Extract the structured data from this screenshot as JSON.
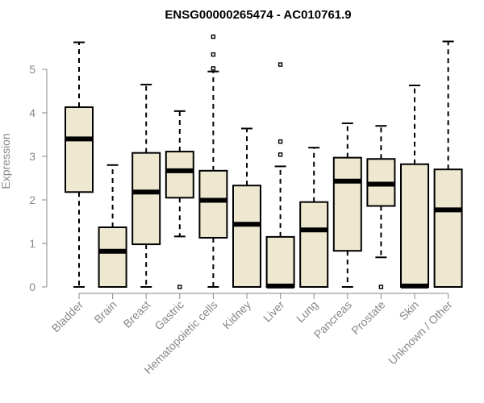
{
  "chart_data": {
    "type": "boxplot",
    "title": "ENSG00000265474 - AC010761.9",
    "xlabel": "",
    "ylabel": "Expression",
    "ylim": [
      0,
      5.9
    ],
    "yticks": [
      0,
      1,
      2,
      3,
      4,
      5
    ],
    "grid": false,
    "colors": {
      "box_fill": "#EEE8D0",
      "box_stroke": "#000000",
      "axis": "#888888",
      "tick_text": "#888888",
      "title": "#000000"
    },
    "categories": [
      "Bladder",
      "Brain",
      "Breast",
      "Gastric",
      "Hematopoietic cells",
      "Kidney",
      "Liver",
      "Lung",
      "Pancreas",
      "Prostate",
      "Skin",
      "Unknown / Other"
    ],
    "boxes": [
      {
        "category": "Bladder",
        "min": 0,
        "q1": 2.18,
        "median": 3.4,
        "q3": 4.13,
        "max": 5.62,
        "outliers": []
      },
      {
        "category": "Brain",
        "min": 0,
        "q1": 0,
        "median": 0.82,
        "q3": 1.37,
        "max": 2.8,
        "outliers": []
      },
      {
        "category": "Breast",
        "min": 0,
        "q1": 0.98,
        "median": 2.18,
        "q3": 3.08,
        "max": 4.65,
        "outliers": []
      },
      {
        "category": "Gastric",
        "min": 1.16,
        "q1": 2.05,
        "median": 2.67,
        "q3": 3.11,
        "max": 4.04,
        "outliers": [
          0
        ]
      },
      {
        "category": "Hematopoietic cells",
        "min": 0,
        "q1": 1.13,
        "median": 1.99,
        "q3": 2.67,
        "max": 4.95,
        "outliers": [
          5.02,
          5.34,
          5.75
        ]
      },
      {
        "category": "Kidney",
        "min": 0,
        "q1": 0,
        "median": 1.44,
        "q3": 2.33,
        "max": 3.64,
        "outliers": []
      },
      {
        "category": "Liver",
        "min": 0,
        "q1": 0,
        "median": 0.02,
        "q3": 1.15,
        "max": 2.77,
        "outliers": [
          3.04,
          3.34,
          5.11
        ]
      },
      {
        "category": "Lung",
        "min": 0,
        "q1": 0,
        "median": 1.31,
        "q3": 1.95,
        "max": 3.2,
        "outliers": []
      },
      {
        "category": "Pancreas",
        "min": 0,
        "q1": 0.83,
        "median": 2.43,
        "q3": 2.97,
        "max": 3.76,
        "outliers": []
      },
      {
        "category": "Prostate",
        "min": 0.68,
        "q1": 1.86,
        "median": 2.36,
        "q3": 2.94,
        "max": 3.7,
        "outliers": [
          0
        ]
      },
      {
        "category": "Skin",
        "min": 0,
        "q1": 0,
        "median": 0.02,
        "q3": 2.82,
        "max": 4.63,
        "outliers": []
      },
      {
        "category": "Unknown / Other",
        "min": 0,
        "q1": 0,
        "median": 1.77,
        "q3": 2.7,
        "max": 5.64,
        "outliers": []
      }
    ]
  }
}
